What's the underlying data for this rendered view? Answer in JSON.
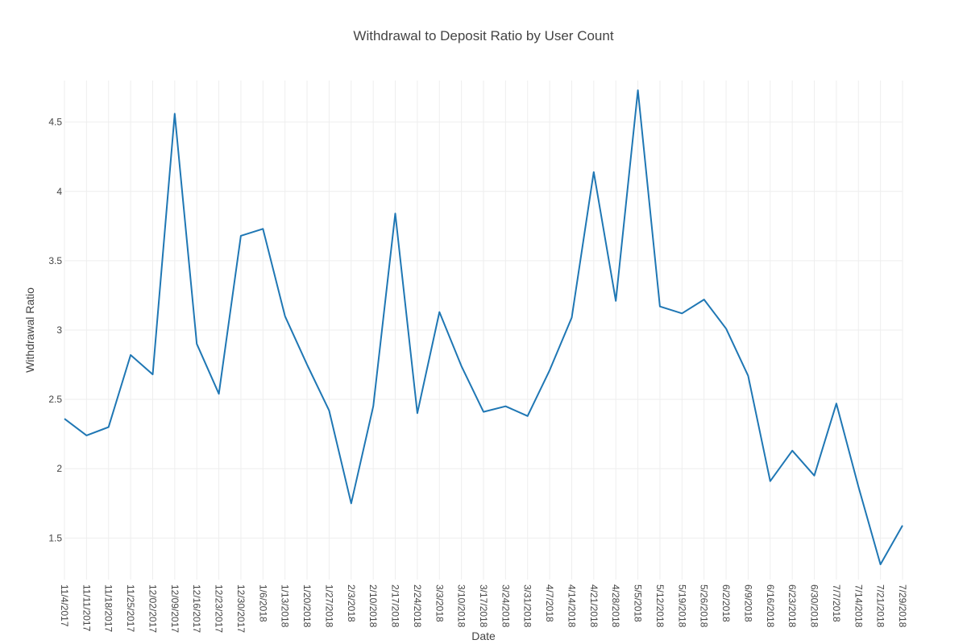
{
  "chart_data": {
    "type": "line",
    "title": "Withdrawal to Deposit Ratio by User Count",
    "xlabel": "Date",
    "ylabel": "Withdrawal Ratio",
    "grid": true,
    "ylim": [
      1.2,
      4.8
    ],
    "yticks": [
      1.5,
      2,
      2.5,
      3,
      3.5,
      4,
      4.5
    ],
    "ytick_labels": [
      "1.5",
      "2",
      "2.5",
      "3",
      "3.5",
      "4",
      "4.5"
    ],
    "categories": [
      "11/4/2017",
      "11/11/2017",
      "11/18/2017",
      "11/25/2017",
      "12/02/2017",
      "12/09/2017",
      "12/16/2017",
      "12/23/2017",
      "12/30/2017",
      "1/6/2018",
      "1/13/2018",
      "1/20/2018",
      "1/27/2018",
      "2/3/2018",
      "2/10/2018",
      "2/17/2018",
      "2/24/2018",
      "3/3/2018",
      "3/10/2018",
      "3/17/2018",
      "3/24/2018",
      "3/31/2018",
      "4/7/2018",
      "4/14/2018",
      "4/21/2018",
      "4/28/2018",
      "5/5/2018",
      "5/12/2018",
      "5/19/2018",
      "5/26/2018",
      "6/2/2018",
      "6/9/2018",
      "6/16/2018",
      "6/23/2018",
      "6/30/2018",
      "7/7/2018",
      "7/14/2018",
      "7/21/2018",
      "7/29/2018"
    ],
    "series": [
      {
        "color": "#1f77b4",
        "values": [
          2.36,
          2.24,
          2.3,
          2.82,
          2.68,
          4.56,
          2.9,
          2.54,
          3.68,
          3.73,
          3.1,
          2.75,
          2.42,
          1.75,
          2.45,
          3.84,
          2.4,
          3.13,
          2.74,
          2.41,
          2.45,
          2.38,
          2.71,
          3.09,
          4.14,
          3.21,
          4.73,
          3.17,
          3.12,
          3.22,
          3.01,
          2.67,
          1.91,
          2.13,
          1.95,
          2.47,
          1.87,
          1.31,
          1.59
        ]
      }
    ]
  }
}
